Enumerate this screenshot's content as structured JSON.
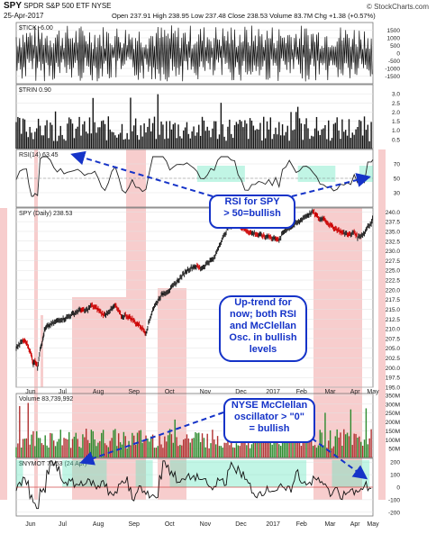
{
  "header": {
    "symbol": "SPY",
    "name": "SPDR S&P 500 ETF",
    "exchange": "NYSE",
    "date": "25-Apr-2017",
    "quote": "Open 237.91  High 238.95  Low 237.48  Close 238.53  Volume 83.7M  Chg +1.38 (+0.57%)",
    "credit": "© StockCharts.com"
  },
  "panel_labels": {
    "tick": "$TICK -6.00",
    "trin": "$TRIN 0.90",
    "rsi": "RSI(14) 63.45",
    "spy": "SPY (Daily) 238.53",
    "volume": "Volume 83,739,992",
    "nymo": "$NYMOT 71.53 (24 Apr)"
  },
  "annotations": {
    "rsi_note": [
      "RSI for SPY",
      "> 50=bullish"
    ],
    "trend_note": [
      "Up-trend for",
      "now; both RSI",
      "and McClellan",
      "Osc. in bullish",
      "levels"
    ],
    "nymo_note": [
      "NYSE McClellan",
      "oscillator > \"0\"",
      "= bullish"
    ]
  },
  "colors": {
    "price_up": "#222222",
    "price_down": "#cc0000",
    "shade_red": "rgba(230,90,90,0.30)",
    "shade_green": "rgba(100,230,190,0.40)",
    "arrow": "#1533c8",
    "vol_up": "#2d8a2d",
    "vol_down": "#b03030"
  },
  "chart_data": {
    "type": "line",
    "x_months": [
      "Jun",
      "Jul",
      "Aug",
      "Sep",
      "Oct",
      "Nov",
      "Dec",
      "2017",
      "Feb",
      "Mar",
      "Apr",
      "May"
    ],
    "panels": [
      {
        "id": "tick",
        "ylim": [
          -2000,
          2000
        ],
        "ticks": [
          "1500",
          "1000",
          "500",
          "0",
          "-500",
          "-1000",
          "-1500"
        ]
      },
      {
        "id": "trin",
        "ylim": [
          0,
          3.5
        ],
        "ticks": [
          "3.0",
          "2.5",
          "2.0",
          "1.5",
          "1.0",
          "0.5"
        ]
      },
      {
        "id": "rsi",
        "ylim": [
          10,
          90
        ],
        "ticks": [
          "70",
          "50",
          "30"
        ]
      },
      {
        "id": "spy",
        "ylim": [
          195,
          241
        ],
        "ticks": [
          "240.0",
          "237.5",
          "235.0",
          "232.5",
          "230.0",
          "227.5",
          "225.0",
          "222.5",
          "220.0",
          "217.5",
          "215.0",
          "212.5",
          "210.0",
          "207.5",
          "205.0",
          "202.5",
          "200.0",
          "197.5",
          "195.0"
        ]
      },
      {
        "id": "volume",
        "ylim": [
          0,
          360000000
        ],
        "ticks": [
          "350M",
          "300M",
          "250M",
          "200M",
          "150M",
          "100M",
          "50M"
        ]
      },
      {
        "id": "nymo",
        "ylim": [
          -230,
          230
        ],
        "ticks": [
          "200",
          "100",
          "0",
          "-100",
          "-200"
        ]
      }
    ],
    "spy_close": {
      "x": [
        0,
        4,
        8,
        12,
        15,
        18,
        20,
        22,
        25,
        28,
        31,
        33,
        36,
        40,
        44,
        48,
        52,
        56,
        60,
        64,
        68,
        72,
        76,
        80,
        84,
        88,
        92,
        96,
        100,
        104,
        108,
        112,
        116,
        120,
        124,
        128,
        132,
        136,
        140,
        144,
        148,
        152,
        156,
        160,
        164,
        168,
        172,
        176,
        180,
        184,
        188,
        192,
        196,
        200,
        204,
        208,
        212,
        216,
        220,
        224,
        228,
        232,
        236,
        240,
        244,
        248,
        252,
        256,
        260,
        264,
        268,
        272,
        276,
        280,
        284,
        288,
        292,
        296,
        300,
        304,
        308,
        312,
        316,
        320,
        324,
        328,
        332,
        336,
        340,
        344,
        348,
        352,
        356,
        360,
        364,
        368,
        372,
        376,
        380,
        384,
        388,
        392,
        396,
        400,
        404,
        408,
        412,
        416,
        418
      ],
      "y": [
        205,
        206,
        207,
        206.5,
        205,
        203,
        201,
        202,
        200,
        205,
        207,
        209.5,
        210.5,
        211,
        211.5,
        212,
        212.5,
        212.5,
        213,
        213.5,
        214,
        214.5,
        215,
        214.5,
        215,
        216,
        215.5,
        215,
        214,
        213.5,
        214.5,
        215,
        216,
        214.5,
        213,
        213.5,
        213,
        212.5,
        211.5,
        211,
        210,
        209,
        212,
        215,
        216.5,
        218,
        219,
        219.5,
        220,
        221,
        222,
        223,
        224,
        225,
        225.5,
        226,
        226,
        225.5,
        226,
        227,
        227.5,
        228,
        230.5,
        232.5,
        234,
        236,
        236.5,
        237.5,
        237,
        236,
        235.5,
        235,
        234.5,
        234.5,
        234,
        234,
        233.5,
        234,
        233,
        233.5,
        232.5,
        234.5,
        235.5,
        236,
        236.5,
        237,
        237.5,
        238.5,
        239,
        239.5,
        240,
        239,
        238,
        238.5,
        237.5,
        236.5,
        236,
        235.5,
        235,
        234.5,
        234.5,
        234,
        235,
        233.5,
        234,
        234.5,
        236.5,
        237,
        238.5
      ],
      "note": "x = trading-day index from early Jun 2016 to 25 Apr 2017"
    },
    "rsi_line": {
      "ylim": [
        10,
        90
      ],
      "threshold": 50
    },
    "nymo_zero": 0
  }
}
